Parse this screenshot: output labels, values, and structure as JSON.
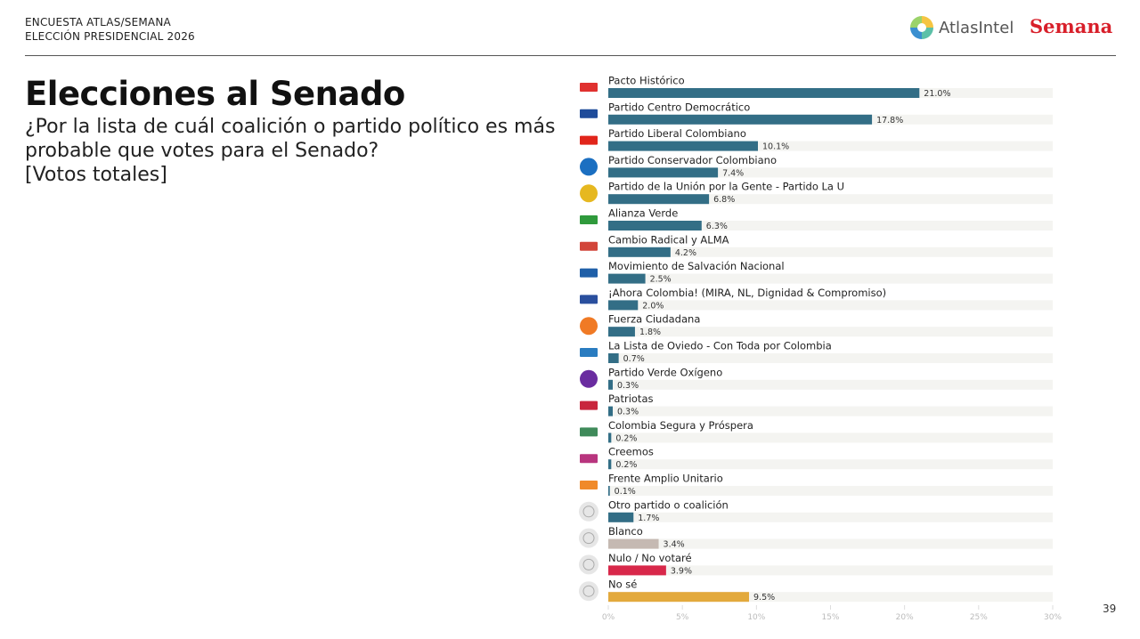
{
  "header": {
    "line1": "ENCUESTA ATLAS/SEMANA",
    "line2": "ELECCIÓN PRESIDENCIAL 2026",
    "logo_atlas": "AtlasIntel",
    "logo_semana": "Semana"
  },
  "title": "Elecciones al Senado",
  "subtitle": "¿Por la lista de cuál coalición o partido político es más probable que votes para el Senado?",
  "subtitle2": "[Votos totales]",
  "page_number": "39",
  "colors": {
    "party": "#336e86",
    "blanco": "#c5b9b2",
    "nulo": "#d8284a",
    "nose": "#e3a93c",
    "track": "#f4f4f1"
  },
  "chart_data": {
    "type": "bar",
    "orientation": "horizontal",
    "categories": [
      "Pacto Histórico",
      "Partido Centro Democrático",
      "Partido Liberal Colombiano",
      "Partido Conservador Colombiano",
      "Partido de la Unión por la Gente - Partido La U",
      "Alianza Verde",
      "Cambio Radical y ALMA",
      "Movimiento de Salvación Nacional",
      "¡Ahora Colombia! (MIRA, NL, Dignidad & Compromiso)",
      "Fuerza Ciudadana",
      "La Lista de Oviedo - Con Toda por Colombia",
      "Partido Verde Oxígeno",
      "Patriotas",
      "Colombia Segura y Próspera",
      "Creemos",
      "Frente Amplio Unitario",
      "Otro partido o coalición",
      "Blanco",
      "Nulo / No votaré",
      "No sé"
    ],
    "values": [
      21.0,
      17.8,
      10.1,
      7.4,
      6.8,
      6.3,
      4.2,
      2.5,
      2.0,
      1.8,
      0.7,
      0.3,
      0.3,
      0.2,
      0.2,
      0.1,
      1.7,
      3.4,
      3.9,
      9.5
    ],
    "value_labels": [
      "21.0%",
      "17.8%",
      "10.1%",
      "7.4%",
      "6.8%",
      "6.3%",
      "4.2%",
      "2.5%",
      "2.0%",
      "1.8%",
      "0.7%",
      "0.3%",
      "0.3%",
      "0.2%",
      "0.2%",
      "0.1%",
      "1.7%",
      "3.4%",
      "3.9%",
      "9.5%"
    ],
    "bar_colors": [
      "party",
      "party",
      "party",
      "party",
      "party",
      "party",
      "party",
      "party",
      "party",
      "party",
      "party",
      "party",
      "party",
      "party",
      "party",
      "party",
      "party",
      "blanco",
      "nulo",
      "nose"
    ],
    "icons": [
      "pacto-logo",
      "centro-democratico-logo",
      "liberal-logo",
      "conservador-logo",
      "la-u-logo",
      "alianza-verde-logo",
      "cambio-radical-logo",
      "salvacion-nacional-logo",
      "ahora-colombia-logo",
      "fuerza-ciudadana-logo",
      "oviedo-logo",
      "verde-oxigeno-logo",
      "patriotas-logo",
      "colombia-segura-logo",
      "creemos-logo",
      "frente-amplio-logo",
      "person-icon",
      "blank-vote-icon",
      "null-vote-icon",
      "question-icon"
    ],
    "icon_colors": [
      "#e0312f",
      "#1f4c9a",
      "#e1251b",
      "#1b6fc1",
      "#e6b820",
      "#2f9a3c",
      "#d2453a",
      "#1f5fa8",
      "#2a4f9e",
      "#f07a25",
      "#2a7cc0",
      "#6a2ca0",
      "#c8263d",
      "#3f8a5a",
      "#b8357e",
      "#f08a2a",
      "#c8c8c8",
      "#d0d0d0",
      "#d0d0d0",
      "#d0d0d0"
    ],
    "xlim": [
      0,
      30
    ],
    "xticks": [
      "0%",
      "5%",
      "10%",
      "15%",
      "20%",
      "25%",
      "30%"
    ],
    "grid": false
  }
}
